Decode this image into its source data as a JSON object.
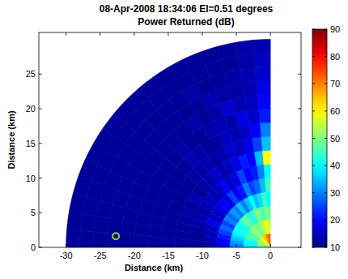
{
  "chart_data": {
    "type": "polar_heatmap",
    "title": "08-Apr-2008 18:34:06 El=0.51 degrees",
    "subtitle": "Power Returned (dB)",
    "x_label": "Distance (km)",
    "y_label": "Distance (km)",
    "xlim": [
      -34,
      4.5
    ],
    "ylim": [
      0,
      31
    ],
    "xticks": [
      -30,
      -25,
      -20,
      -15,
      -10,
      -5,
      0
    ],
    "yticks": [
      0,
      5,
      10,
      15,
      20,
      25
    ],
    "range_edges": [
      0,
      2,
      4,
      6,
      8,
      10,
      12,
      14,
      16,
      18,
      20,
      22,
      24,
      26,
      28,
      30
    ],
    "angle_edges": [
      90,
      95,
      100,
      105,
      110,
      115,
      120,
      125,
      130,
      135,
      140,
      145,
      150,
      155,
      160,
      165,
      170,
      175,
      180
    ],
    "cells": [
      [
        70,
        75,
        72,
        70,
        68,
        65,
        65,
        62,
        60,
        58,
        55,
        55,
        55,
        52,
        50,
        50,
        48,
        48
      ],
      [
        55,
        58,
        60,
        55,
        52,
        50,
        48,
        50,
        52,
        50,
        48,
        45,
        48,
        45,
        42,
        40,
        40,
        38
      ],
      [
        48,
        50,
        45,
        48,
        50,
        45,
        42,
        45,
        48,
        45,
        42,
        40,
        42,
        40,
        38,
        35,
        32,
        30
      ],
      [
        40,
        45,
        38,
        35,
        40,
        35,
        30,
        35,
        30,
        32,
        28,
        30,
        25,
        28,
        25,
        22,
        20,
        18
      ],
      [
        45,
        35,
        28,
        25,
        30,
        22,
        20,
        25,
        18,
        20,
        18,
        16,
        15,
        18,
        15,
        14,
        14,
        13
      ],
      [
        40,
        30,
        22,
        20,
        25,
        18,
        15,
        20,
        15,
        14,
        15,
        14,
        13,
        14,
        13,
        12,
        12,
        12
      ],
      [
        60,
        35,
        20,
        22,
        18,
        15,
        14,
        16,
        14,
        13,
        12,
        14,
        12,
        13,
        12,
        12,
        12,
        12
      ],
      [
        35,
        25,
        18,
        15,
        16,
        14,
        13,
        14,
        13,
        13,
        12,
        12,
        12,
        12,
        12,
        12,
        12,
        12
      ],
      [
        30,
        20,
        16,
        14,
        15,
        13,
        12,
        13,
        14,
        12,
        12,
        12,
        12,
        12,
        12,
        12,
        12,
        12
      ],
      [
        22,
        16,
        18,
        13,
        14,
        13,
        12,
        12,
        13,
        12,
        12,
        12,
        12,
        12,
        12,
        12,
        12,
        12
      ],
      [
        20,
        15,
        14,
        16,
        13,
        12,
        13,
        12,
        12,
        12,
        12,
        12,
        12,
        12,
        12,
        12,
        12,
        12
      ],
      [
        18,
        14,
        13,
        13,
        14,
        12,
        12,
        12,
        12,
        12,
        12,
        12,
        12,
        12,
        12,
        12,
        12,
        12
      ],
      [
        16,
        14,
        13,
        12,
        12,
        13,
        12,
        12,
        12,
        12,
        12,
        12,
        12,
        12,
        12,
        12,
        12,
        12
      ],
      [
        15,
        13,
        12,
        12,
        12,
        12,
        12,
        12,
        12,
        12,
        12,
        12,
        12,
        12,
        12,
        12,
        12,
        12
      ],
      [
        14,
        13,
        12,
        12,
        12,
        12,
        12,
        12,
        12,
        12,
        12,
        12,
        12,
        12,
        12,
        12,
        12,
        12
      ]
    ],
    "colorbar": {
      "range": [
        10,
        90
      ],
      "ticks": [
        10,
        20,
        30,
        40,
        50,
        60,
        70,
        80,
        90
      ]
    },
    "points": {
      "x": [
        -22.7
      ],
      "y": [
        1.6
      ],
      "color": "#9acd32",
      "marker": "circle"
    }
  }
}
